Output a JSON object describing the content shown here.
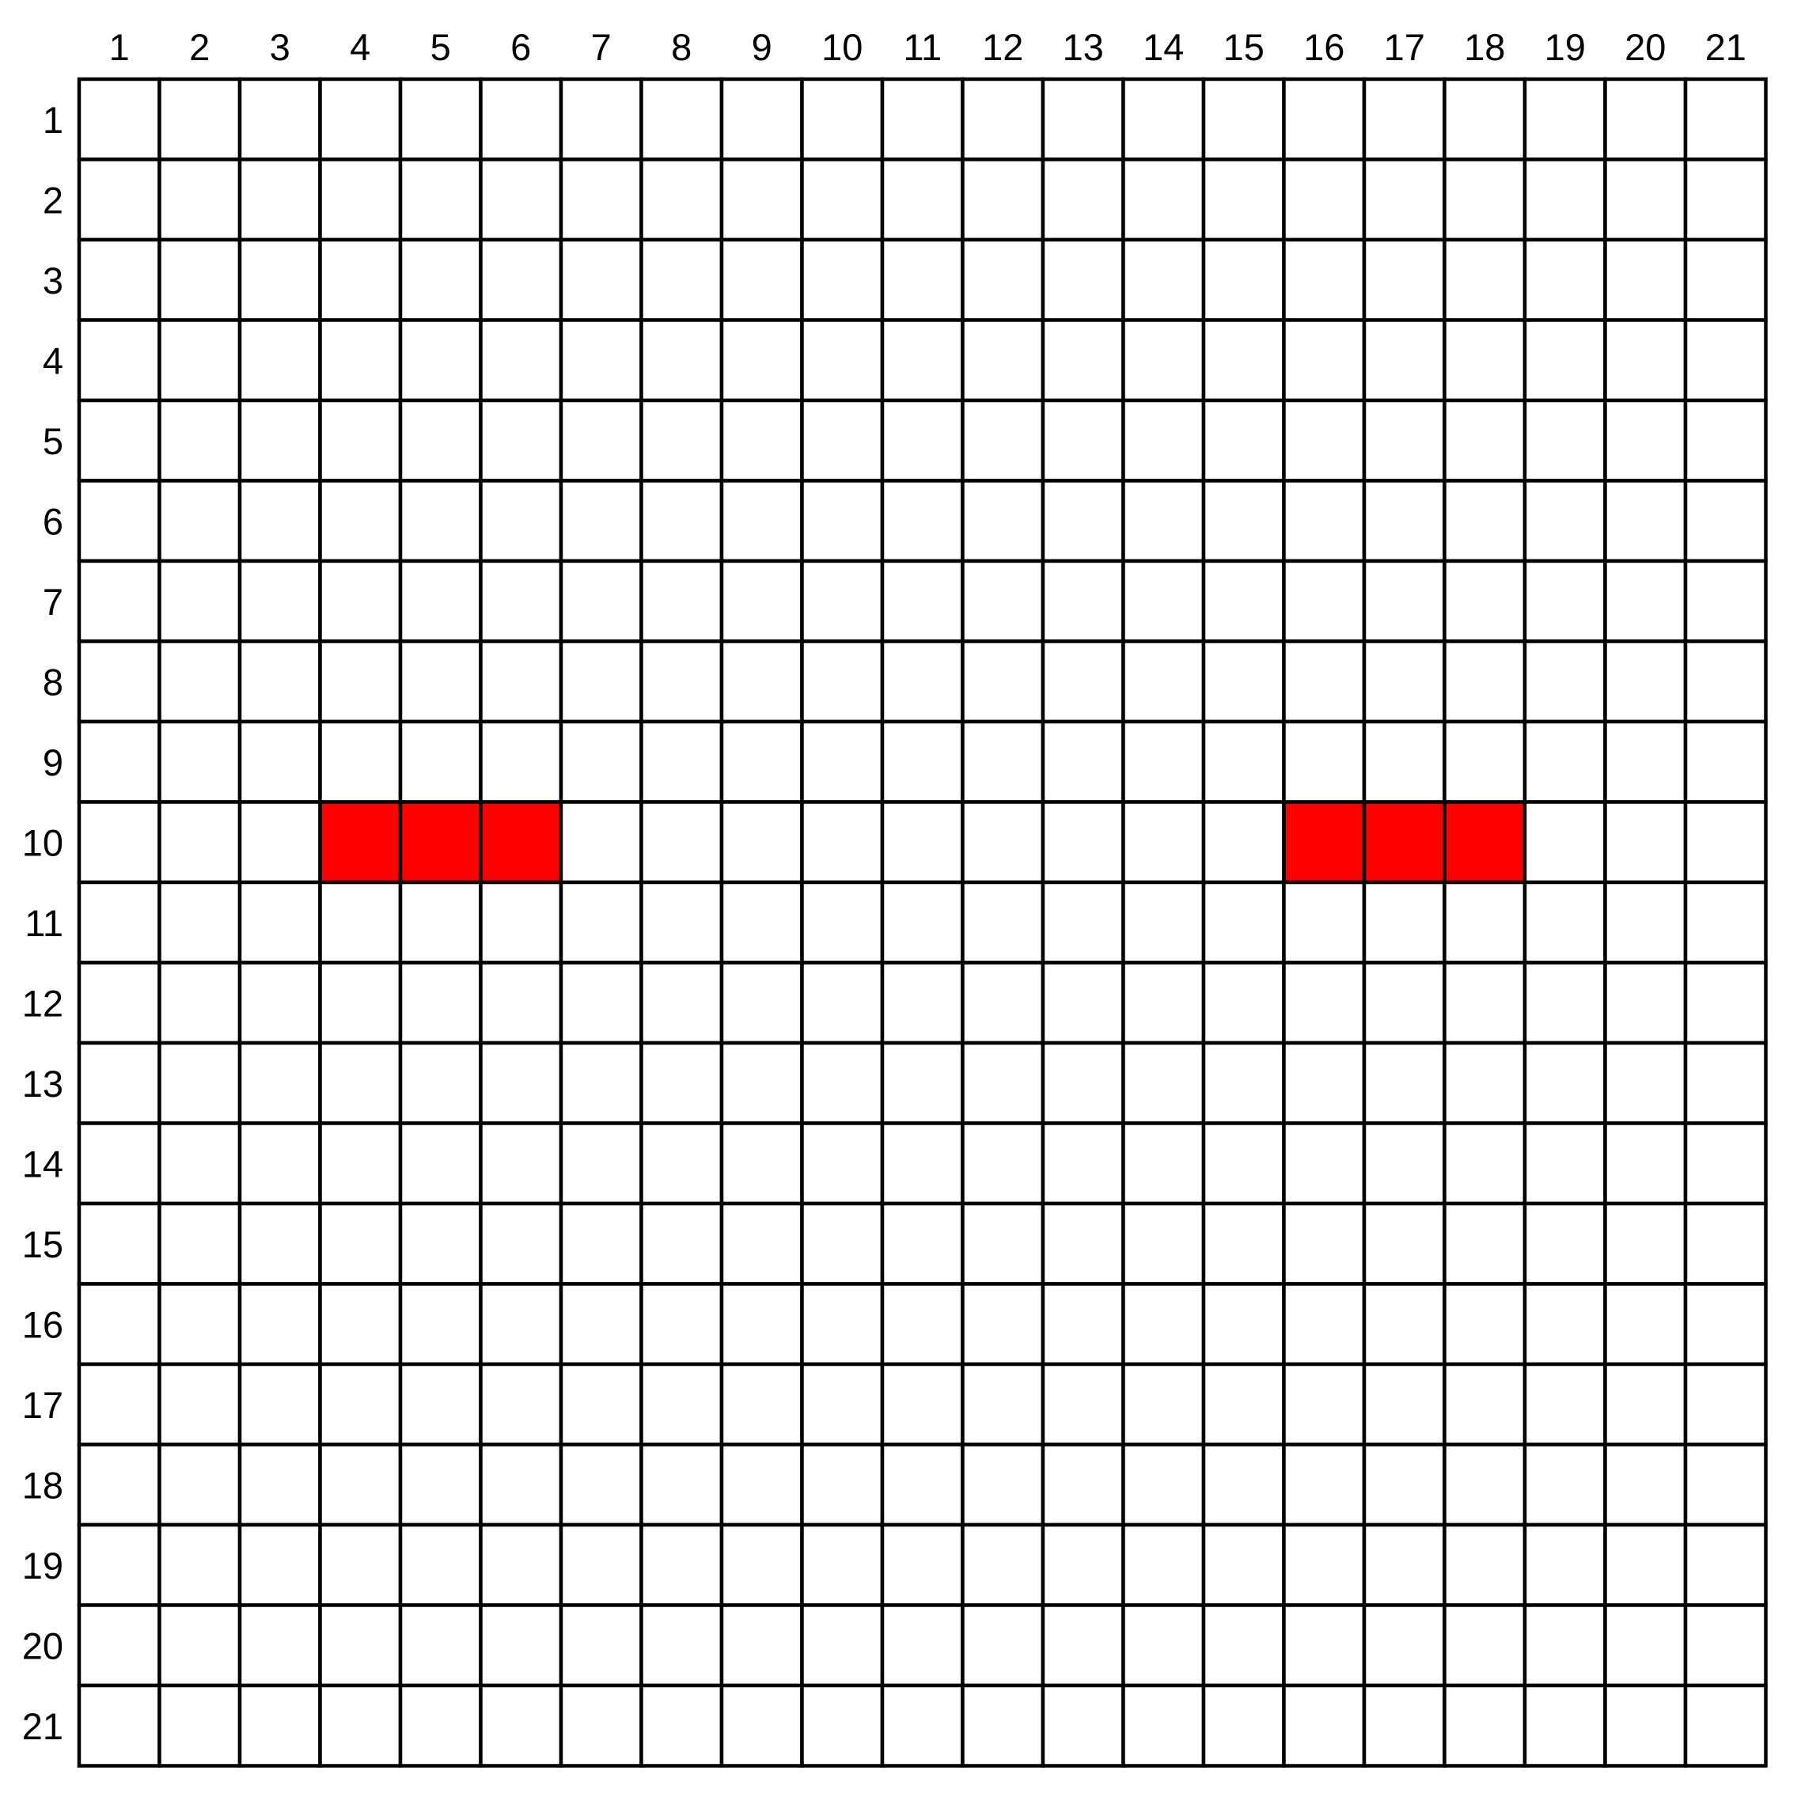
{
  "grid": {
    "rows": 21,
    "cols": 21,
    "column_labels": [
      "1",
      "2",
      "3",
      "4",
      "5",
      "6",
      "7",
      "8",
      "9",
      "10",
      "11",
      "12",
      "13",
      "14",
      "15",
      "16",
      "17",
      "18",
      "19",
      "20",
      "21"
    ],
    "row_labels": [
      "1",
      "2",
      "3",
      "4",
      "5",
      "6",
      "7",
      "8",
      "9",
      "10",
      "11",
      "12",
      "13",
      "14",
      "15",
      "16",
      "17",
      "18",
      "19",
      "20",
      "21"
    ],
    "empty_color": "#ffffff",
    "line_color": "#000000",
    "filled_color": "#ff0000",
    "filled_cells": [
      {
        "row": 10,
        "col": 4
      },
      {
        "row": 10,
        "col": 5
      },
      {
        "row": 10,
        "col": 6
      },
      {
        "row": 10,
        "col": 16
      },
      {
        "row": 10,
        "col": 17
      },
      {
        "row": 10,
        "col": 18
      }
    ]
  }
}
